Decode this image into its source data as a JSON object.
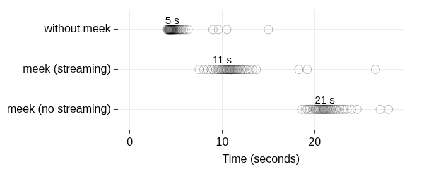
{
  "chart_data": {
    "type": "strip",
    "x_label": "Time (seconds)",
    "categories": [
      "without meek",
      "meek (streaming)",
      "meek (no streaming)"
    ],
    "values": [
      [
        4.0,
        4.1,
        4.1,
        4.2,
        4.2,
        4.2,
        4.3,
        4.3,
        4.3,
        4.3,
        4.4,
        4.4,
        4.4,
        4.5,
        4.5,
        4.5,
        4.5,
        4.6,
        4.6,
        4.6,
        4.7,
        4.7,
        4.7,
        4.8,
        4.8,
        4.9,
        4.9,
        5.0,
        5.0,
        5.1,
        5.2,
        5.3,
        5.4,
        5.5,
        5.6,
        5.8,
        6.0,
        6.3,
        9.0,
        9.6,
        10.5,
        15.0
      ],
      [
        7.5,
        8.0,
        8.4,
        8.8,
        9.0,
        9.3,
        9.5,
        9.6,
        9.8,
        9.9,
        10.0,
        10.1,
        10.2,
        10.3,
        10.4,
        10.5,
        10.5,
        10.6,
        10.7,
        10.8,
        10.8,
        10.9,
        11.0,
        11.0,
        11.1,
        11.2,
        11.3,
        11.4,
        11.5,
        11.6,
        11.7,
        11.8,
        12.0,
        12.1,
        12.3,
        12.5,
        12.7,
        13.0,
        13.3,
        13.7,
        18.3,
        19.2,
        26.6
      ],
      [
        18.6,
        19.0,
        19.2,
        19.4,
        19.6,
        19.8,
        20.0,
        20.1,
        20.2,
        20.3,
        20.4,
        20.5,
        20.6,
        20.7,
        20.8,
        20.9,
        21.0,
        21.0,
        21.1,
        21.2,
        21.3,
        21.4,
        21.5,
        21.6,
        21.7,
        21.8,
        22.0,
        22.1,
        22.3,
        22.5,
        22.7,
        23.0,
        23.2,
        23.5,
        24.0,
        24.6,
        27.1,
        28.0
      ]
    ],
    "annotations": [
      {
        "text": "5 s",
        "x": 4.6,
        "category": "without meek"
      },
      {
        "text": "11 s",
        "x": 10.0,
        "category": "meek (streaming)"
      },
      {
        "text": "21 s",
        "x": 21.1,
        "category": "meek (no streaming)"
      }
    ],
    "xlim": [
      -1.3,
      29.7
    ],
    "xticks": [
      0,
      10,
      20
    ],
    "color": "#000000",
    "marker": "circle_open",
    "grid": true
  }
}
